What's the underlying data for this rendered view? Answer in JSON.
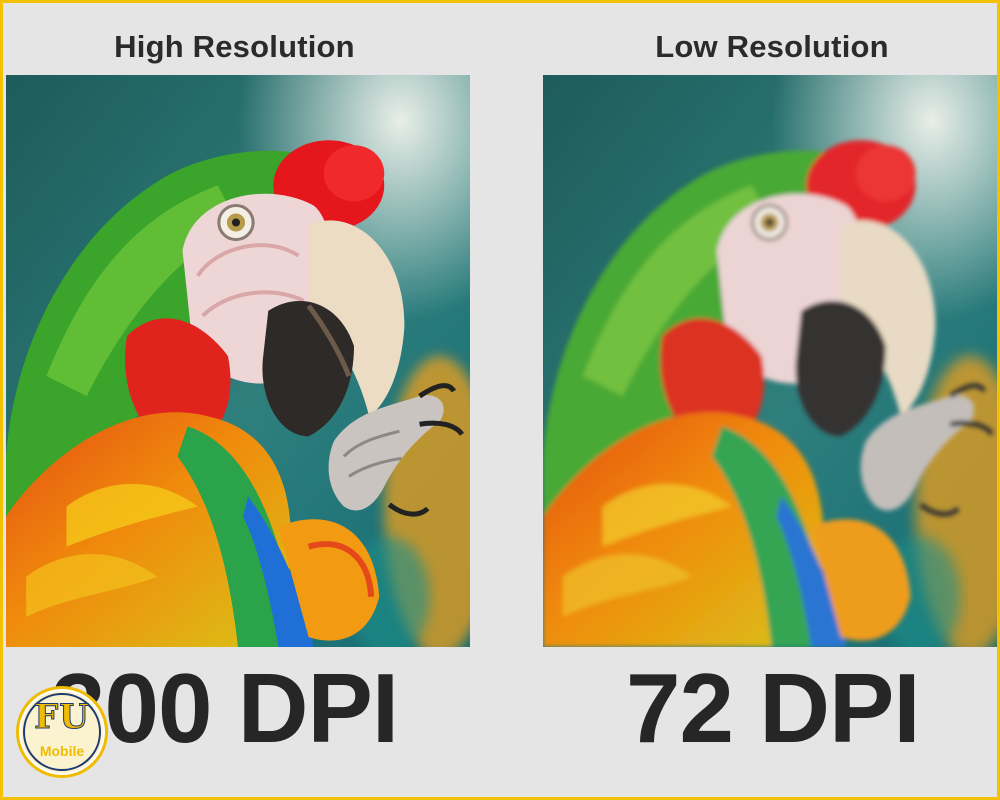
{
  "comparison": {
    "high": {
      "heading": "High Resolution",
      "dpi_label": "300 DPI"
    },
    "low": {
      "heading": "Low Resolution",
      "dpi_label": "72 DPI"
    }
  },
  "photo": {
    "subject": "macaw parrot"
  },
  "logo": {
    "mark": "FU",
    "wordmark": "Mobile"
  },
  "colors": {
    "frame": "#f2c200",
    "background": "#e5e5e6",
    "text": "#262626",
    "logo_gold": "#f0bb00",
    "logo_navy": "#1f3a72"
  }
}
